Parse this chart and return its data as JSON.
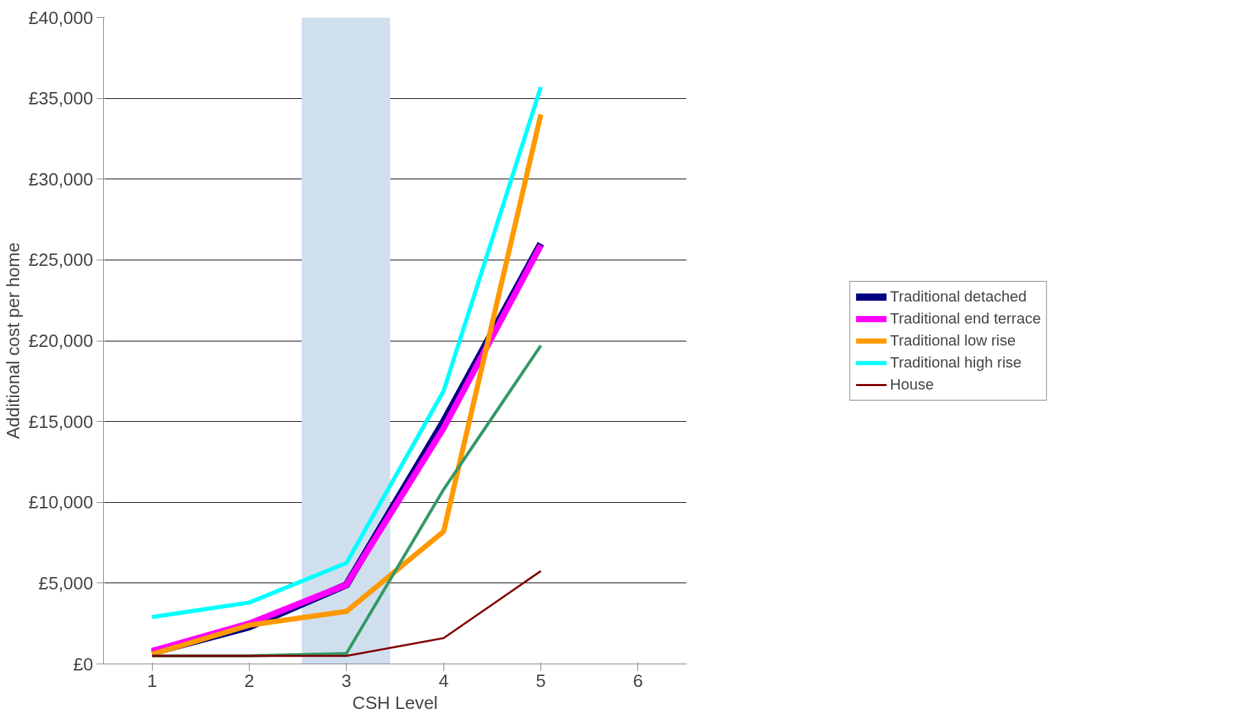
{
  "chart_data": {
    "type": "line",
    "xlabel": "CSH Level",
    "ylabel": "Additional cost per home",
    "x": [
      1,
      2,
      3,
      4,
      5
    ],
    "xlim": [
      0.5,
      6.5
    ],
    "xticks": [
      1,
      2,
      3,
      4,
      5,
      6
    ],
    "ylim": [
      0,
      40000
    ],
    "yticks": [
      {
        "value": 0,
        "label": "£0"
      },
      {
        "value": 5000,
        "label": "£5,000"
      },
      {
        "value": 10000,
        "label": "£10,000"
      },
      {
        "value": 15000,
        "label": "£15,000"
      },
      {
        "value": 20000,
        "label": "£20,000"
      },
      {
        "value": 25000,
        "label": "£25,000"
      },
      {
        "value": 30000,
        "label": "£30,000"
      },
      {
        "value": 35000,
        "label": "£35,000"
      },
      {
        "value": 40000,
        "label": "£40,000"
      }
    ],
    "grid": "y",
    "legend": "right",
    "marker": "none",
    "line_style": "solid",
    "bands": [
      {
        "axis": "x",
        "from": 2.54,
        "to": 3.45,
        "color": "#d0dfee"
      }
    ],
    "series": [
      {
        "name": "Traditional detached",
        "color": "#000080",
        "values": [
          700,
          2300,
          4900,
          15000,
          26000
        ]
      },
      {
        "name": "Traditional end terrace",
        "color": "#ff00ff",
        "values": [
          800,
          2500,
          4900,
          14600,
          25900
        ]
      },
      {
        "name": "Traditional low rise",
        "color": "#ff9900",
        "values": [
          600,
          2400,
          3250,
          8200,
          34000
        ]
      },
      {
        "name": "Traditional high rise",
        "color": "#00ffff",
        "values": [
          2900,
          3800,
          6250,
          16900,
          35700
        ]
      },
      {
        "color": "#339966",
        "values": [
          500,
          500,
          650,
          10800,
          19700
        ]
      },
      {
        "name": "House",
        "color": "#800000",
        "values": [
          500,
          500,
          500,
          1600,
          5750
        ]
      }
    ]
  }
}
